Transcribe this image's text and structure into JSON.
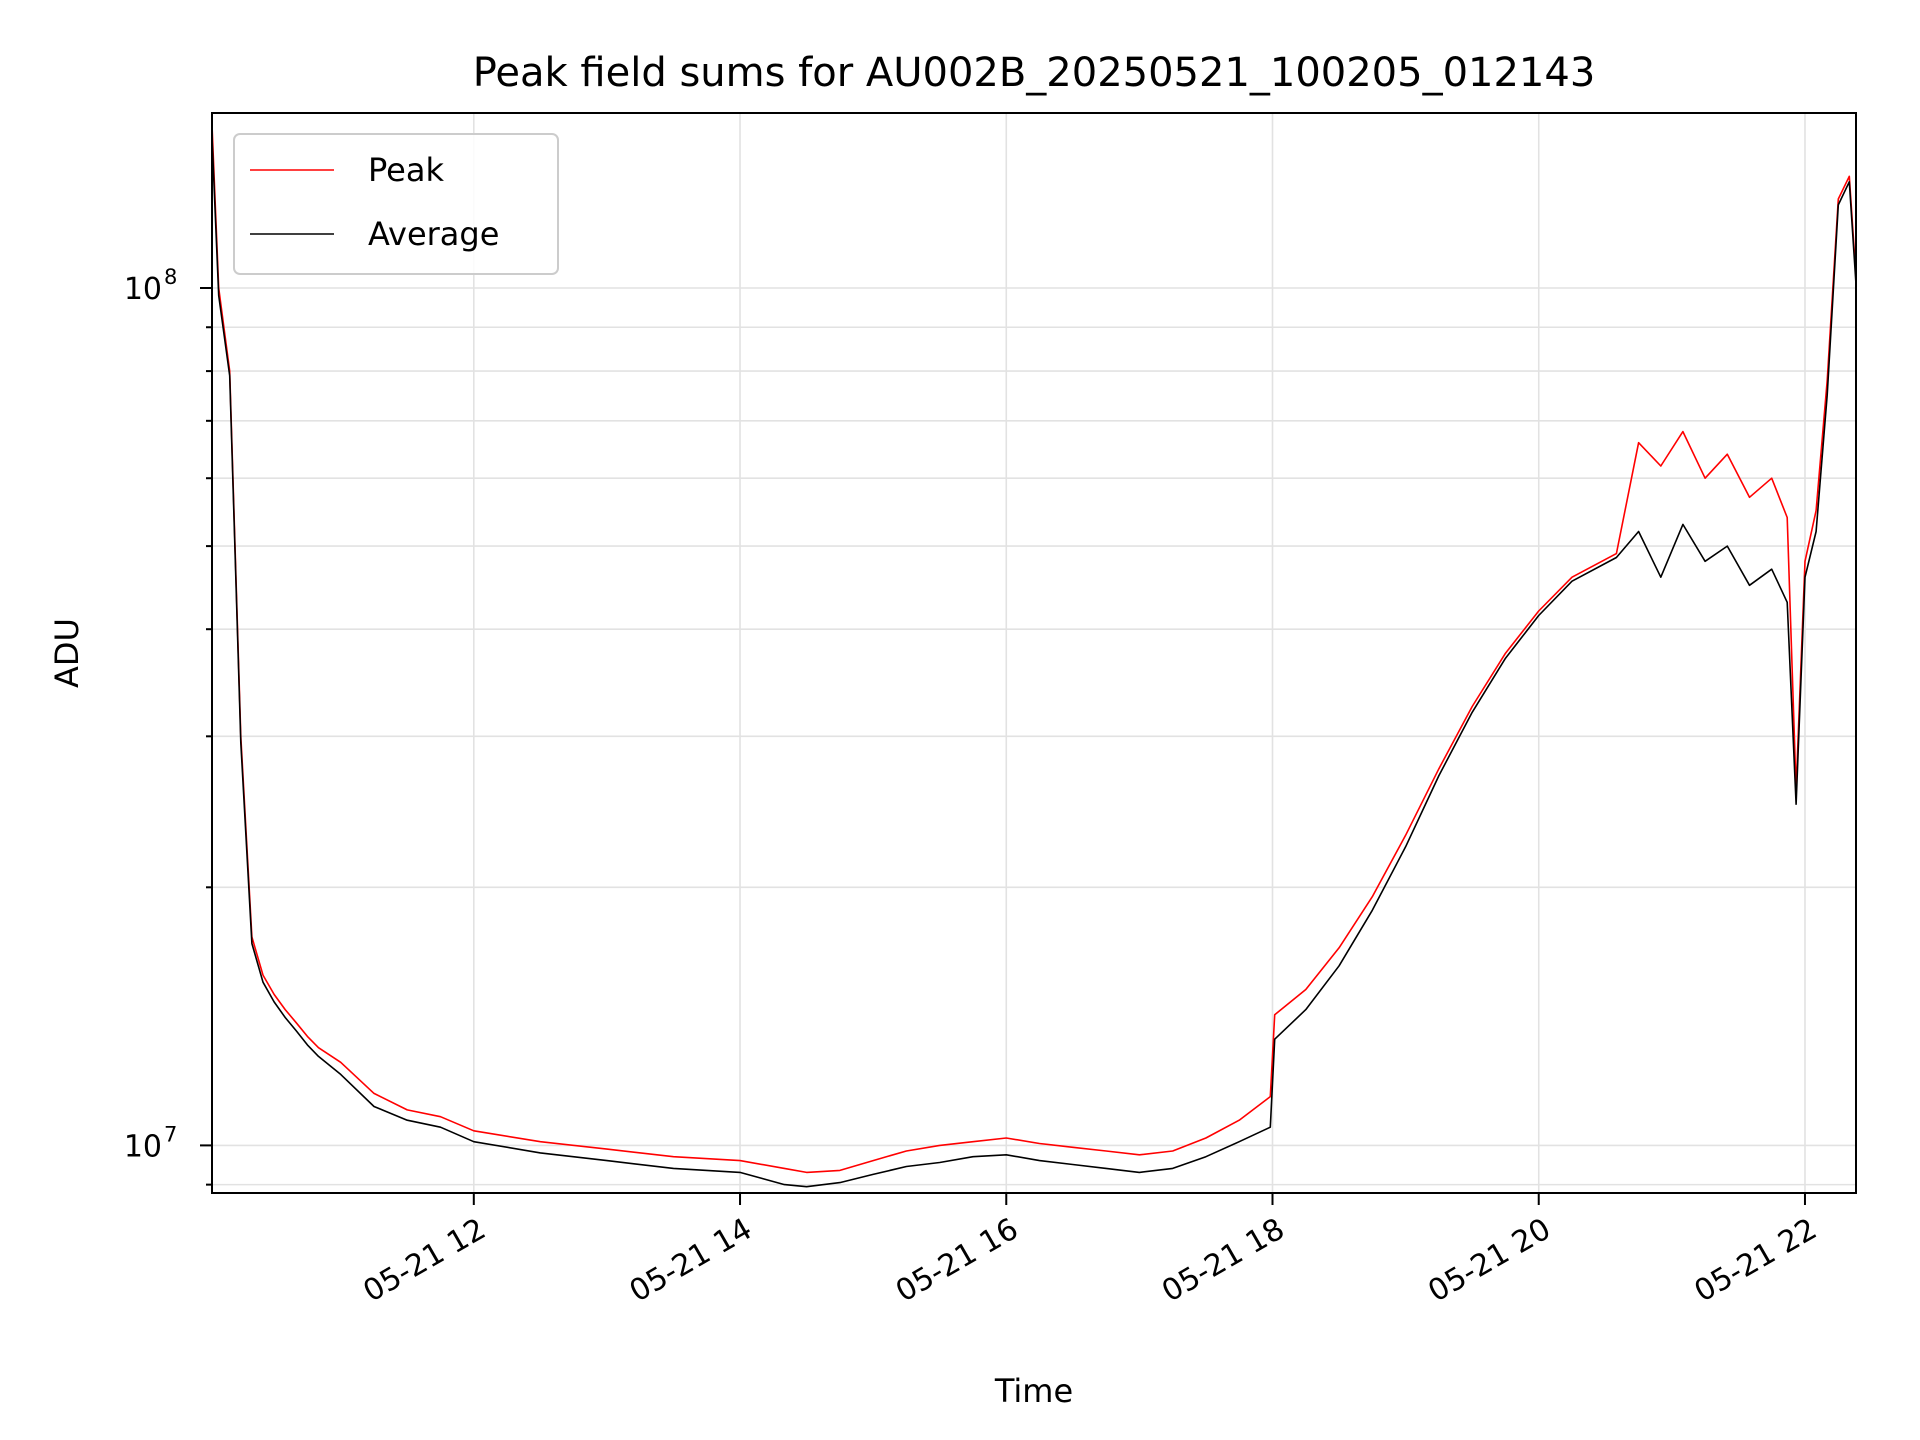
{
  "chart_data": {
    "type": "line",
    "title": "Peak field sums for AU002B_20250521_100205_012143",
    "xlabel": "Time",
    "ylabel": "ADU",
    "y_scale": "log",
    "ylim": [
      8800000,
      160000000
    ],
    "xlim": [
      "2025-05-21 10:02",
      "2025-05-21 22:23"
    ],
    "x_tick_labels": [
      "05-21 12",
      "05-21 14",
      "05-21 16",
      "05-21 18",
      "05-21 20",
      "05-21 22"
    ],
    "x_ticks": [
      "2025-05-21 12:00",
      "2025-05-21 14:00",
      "2025-05-21 16:00",
      "2025-05-21 18:00",
      "2025-05-21 20:00",
      "2025-05-21 22:00"
    ],
    "y_tick_labels": [
      {
        "value": 100000000,
        "base": "10",
        "exp": "8"
      },
      {
        "value": 10000000,
        "base": "10",
        "exp": "7"
      }
    ],
    "grid": true,
    "legend_position": "upper-left",
    "series": [
      {
        "name": "Peak",
        "color": "#ff0000",
        "x": [
          "2025-05-21 10:02",
          "2025-05-21 10:05",
          "2025-05-21 10:10",
          "2025-05-21 10:15",
          "2025-05-21 10:20",
          "2025-05-21 10:25",
          "2025-05-21 10:30",
          "2025-05-21 10:35",
          "2025-05-21 10:40",
          "2025-05-21 10:45",
          "2025-05-21 10:50",
          "2025-05-21 11:00",
          "2025-05-21 11:15",
          "2025-05-21 11:30",
          "2025-05-21 11:45",
          "2025-05-21 12:00",
          "2025-05-21 12:30",
          "2025-05-21 13:00",
          "2025-05-21 13:30",
          "2025-05-21 14:00",
          "2025-05-21 14:20",
          "2025-05-21 14:30",
          "2025-05-21 14:45",
          "2025-05-21 15:00",
          "2025-05-21 15:15",
          "2025-05-21 15:30",
          "2025-05-21 15:45",
          "2025-05-21 16:00",
          "2025-05-21 16:15",
          "2025-05-21 16:30",
          "2025-05-21 16:45",
          "2025-05-21 17:00",
          "2025-05-21 17:15",
          "2025-05-21 17:30",
          "2025-05-21 17:45",
          "2025-05-21 17:59",
          "2025-05-21 18:01",
          "2025-05-21 18:15",
          "2025-05-21 18:30",
          "2025-05-21 18:45",
          "2025-05-21 19:00",
          "2025-05-21 19:15",
          "2025-05-21 19:30",
          "2025-05-21 19:45",
          "2025-05-21 20:00",
          "2025-05-21 20:15",
          "2025-05-21 20:35",
          "2025-05-21 20:45",
          "2025-05-21 20:55",
          "2025-05-21 21:05",
          "2025-05-21 21:15",
          "2025-05-21 21:25",
          "2025-05-21 21:35",
          "2025-05-21 21:45",
          "2025-05-21 21:52",
          "2025-05-21 21:56",
          "2025-05-21 22:00",
          "2025-05-21 22:05",
          "2025-05-21 22:10",
          "2025-05-21 22:15",
          "2025-05-21 22:20",
          "2025-05-21 22:23"
        ],
        "y": [
          155000000,
          100000000,
          80000000,
          30000000,
          17500000,
          15800000,
          15000000,
          14400000,
          13900000,
          13400000,
          13000000,
          12500000,
          11500000,
          11000000,
          10800000,
          10400000,
          10100000,
          9900000,
          9700000,
          9600000,
          9400000,
          9300000,
          9350000,
          9600000,
          9850000,
          10000000,
          10100000,
          10200000,
          10050000,
          9950000,
          9850000,
          9750000,
          9850000,
          10200000,
          10700000,
          11400000,
          14200000,
          15200000,
          17000000,
          19500000,
          23000000,
          27500000,
          32500000,
          37500000,
          42000000,
          46000000,
          49000000,
          66000000,
          62000000,
          68000000,
          60000000,
          64000000,
          57000000,
          60000000,
          54000000,
          26000000,
          48000000,
          55000000,
          78000000,
          127000000,
          135000000,
          103000000
        ]
      },
      {
        "name": "Average",
        "color": "#000000",
        "x": [
          "2025-05-21 10:02",
          "2025-05-21 10:05",
          "2025-05-21 10:10",
          "2025-05-21 10:15",
          "2025-05-21 10:20",
          "2025-05-21 10:25",
          "2025-05-21 10:30",
          "2025-05-21 10:35",
          "2025-05-21 10:40",
          "2025-05-21 10:45",
          "2025-05-21 10:50",
          "2025-05-21 11:00",
          "2025-05-21 11:15",
          "2025-05-21 11:30",
          "2025-05-21 11:45",
          "2025-05-21 12:00",
          "2025-05-21 12:30",
          "2025-05-21 13:00",
          "2025-05-21 13:30",
          "2025-05-21 14:00",
          "2025-05-21 14:20",
          "2025-05-21 14:30",
          "2025-05-21 14:45",
          "2025-05-21 15:00",
          "2025-05-21 15:15",
          "2025-05-21 15:30",
          "2025-05-21 15:45",
          "2025-05-21 16:00",
          "2025-05-21 16:15",
          "2025-05-21 16:30",
          "2025-05-21 16:45",
          "2025-05-21 17:00",
          "2025-05-21 17:15",
          "2025-05-21 17:30",
          "2025-05-21 17:45",
          "2025-05-21 17:59",
          "2025-05-21 18:01",
          "2025-05-21 18:15",
          "2025-05-21 18:30",
          "2025-05-21 18:45",
          "2025-05-21 19:00",
          "2025-05-21 19:15",
          "2025-05-21 19:30",
          "2025-05-21 19:45",
          "2025-05-21 20:00",
          "2025-05-21 20:15",
          "2025-05-21 20:35",
          "2025-05-21 20:45",
          "2025-05-21 20:55",
          "2025-05-21 21:05",
          "2025-05-21 21:15",
          "2025-05-21 21:25",
          "2025-05-21 21:35",
          "2025-05-21 21:45",
          "2025-05-21 21:52",
          "2025-05-21 21:56",
          "2025-05-21 22:00",
          "2025-05-21 22:05",
          "2025-05-21 22:10",
          "2025-05-21 22:15",
          "2025-05-21 22:20",
          "2025-05-21 22:23"
        ],
        "y": [
          150000000,
          98000000,
          79000000,
          29500000,
          17200000,
          15500000,
          14700000,
          14100000,
          13600000,
          13100000,
          12700000,
          12100000,
          11100000,
          10700000,
          10500000,
          10100000,
          9800000,
          9600000,
          9400000,
          9300000,
          9000000,
          8950000,
          9050000,
          9250000,
          9450000,
          9550000,
          9700000,
          9750000,
          9600000,
          9500000,
          9400000,
          9300000,
          9400000,
          9700000,
          10100000,
          10500000,
          13300000,
          14400000,
          16200000,
          18800000,
          22300000,
          27000000,
          32000000,
          37000000,
          41500000,
          45500000,
          48500000,
          52000000,
          46000000,
          53000000,
          48000000,
          50000000,
          45000000,
          47000000,
          43000000,
          25000000,
          46000000,
          52000000,
          75000000,
          125000000,
          133000000,
          101000000
        ]
      }
    ]
  }
}
